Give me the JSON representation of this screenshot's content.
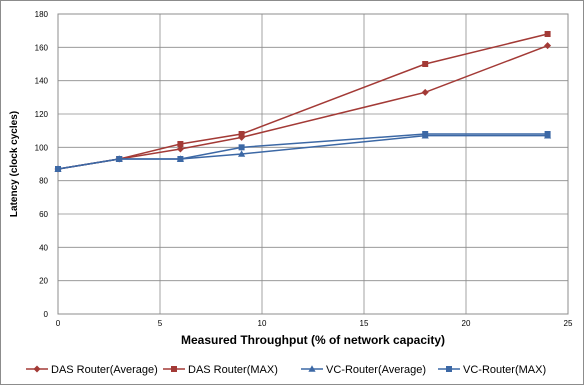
{
  "chart_data": {
    "type": "line",
    "title": "",
    "xlabel": "Measured Throughput (% of network capacity)",
    "ylabel": "Latency (clock cycles)",
    "xlim": [
      0,
      25
    ],
    "ylim": [
      0,
      180
    ],
    "xticks": [
      0,
      5,
      10,
      15,
      20,
      25
    ],
    "yticks": [
      0,
      20,
      40,
      60,
      80,
      100,
      120,
      140,
      160,
      180
    ],
    "grid": true,
    "legend_position": "bottom",
    "series": [
      {
        "name": "DAS Router(Average)",
        "color": "#A33A36",
        "marker": "diamond",
        "x": [
          0,
          3,
          6,
          9,
          18,
          24
        ],
        "y": [
          87,
          93,
          99,
          106,
          133,
          161
        ]
      },
      {
        "name": "DAS Router(MAX)",
        "color": "#A33A36",
        "marker": "square",
        "x": [
          0,
          3,
          6,
          9,
          18,
          24
        ],
        "y": [
          87,
          93,
          102,
          108,
          150,
          168
        ]
      },
      {
        "name": "VC-Router(Average)",
        "color": "#3C68A5",
        "marker": "triangle",
        "x": [
          0,
          3,
          6,
          9,
          18,
          24
        ],
        "y": [
          87,
          93,
          93,
          96,
          107,
          107
        ]
      },
      {
        "name": "VC-Router(MAX)",
        "color": "#3C68A5",
        "marker": "square",
        "x": [
          0,
          3,
          6,
          9,
          18,
          24
        ],
        "y": [
          87,
          93,
          93,
          100,
          108,
          108
        ]
      }
    ]
  }
}
